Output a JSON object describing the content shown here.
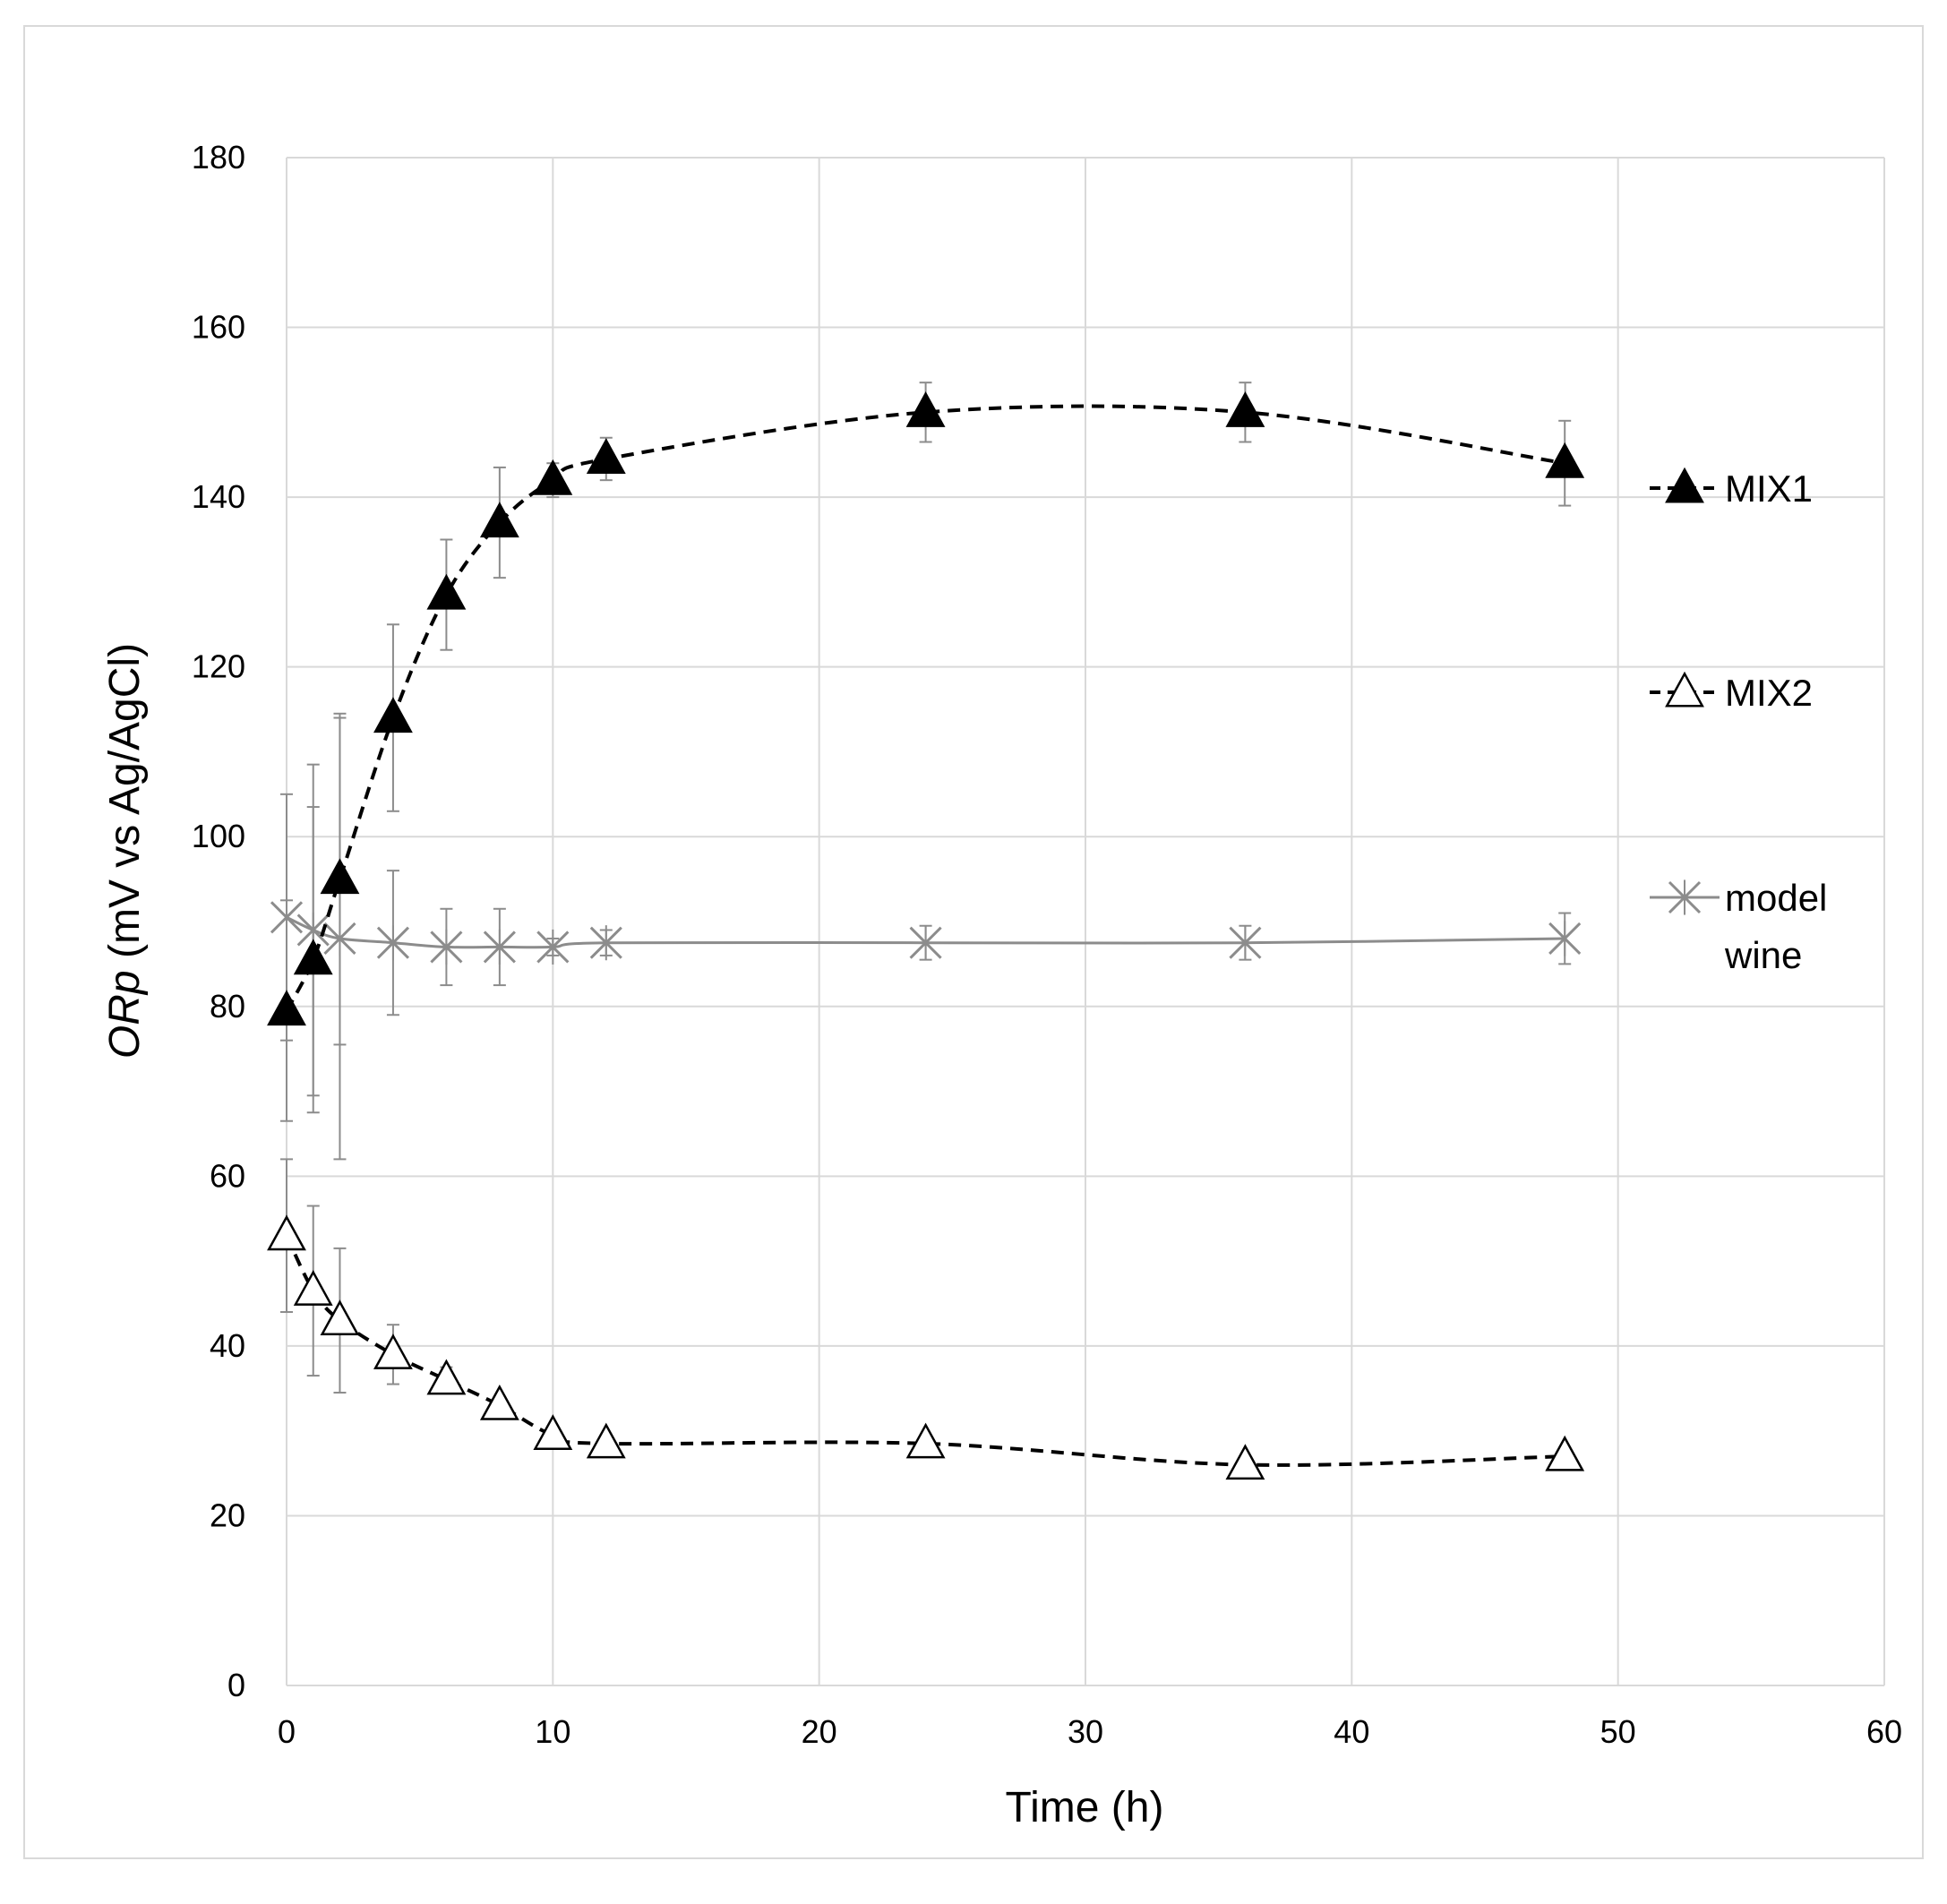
{
  "chart_data": {
    "type": "line",
    "title": "",
    "xlabel": "Time (h)",
    "ylabel": {
      "italic_part": "ORp",
      "rest": " (mV vs Ag/AgCl)"
    },
    "xlim": [
      0,
      60
    ],
    "ylim": [
      0,
      180
    ],
    "xticks": [
      "0",
      "10",
      "20",
      "30",
      "40",
      "50",
      "60"
    ],
    "yticks": [
      "0",
      "20",
      "40",
      "60",
      "80",
      "100",
      "120",
      "140",
      "160",
      "180"
    ],
    "grid": true,
    "legend_position": "right",
    "x": [
      0,
      1,
      2,
      4,
      6,
      8,
      10,
      12,
      24,
      36,
      48
    ],
    "series": [
      {
        "name": "MIX1",
        "marker": "filled-triangle",
        "line": "dashed",
        "color": "#000000",
        "values": [
          79.5,
          85.5,
          95,
          114,
          128.5,
          137,
          142,
          144.5,
          150,
          150,
          144
        ],
        "errors": [
          13,
          18,
          19.5,
          11,
          6.5,
          6.5,
          2,
          2.5,
          3.5,
          3.5,
          5
        ]
      },
      {
        "name": "MIX2",
        "marker": "open-triangle",
        "line": "dashed",
        "color": "#000000",
        "values": [
          53,
          46.5,
          43,
          39,
          36,
          33,
          29.5,
          28.5,
          28.5,
          26,
          27
        ],
        "errors": [
          9,
          10,
          8.5,
          3.5,
          1.5,
          1,
          1,
          1,
          1,
          1,
          1
        ]
      },
      {
        "name": "model wine",
        "marker": "cross",
        "line": "solid",
        "color": "#8c8c8c",
        "values": [
          90.5,
          89,
          88,
          87.5,
          87,
          87,
          87,
          87.5,
          87.5,
          87.5,
          88
        ],
        "errors": [
          14.5,
          19.5,
          26,
          8.5,
          4.5,
          4.5,
          1,
          1.5,
          2,
          2,
          3
        ]
      }
    ]
  }
}
